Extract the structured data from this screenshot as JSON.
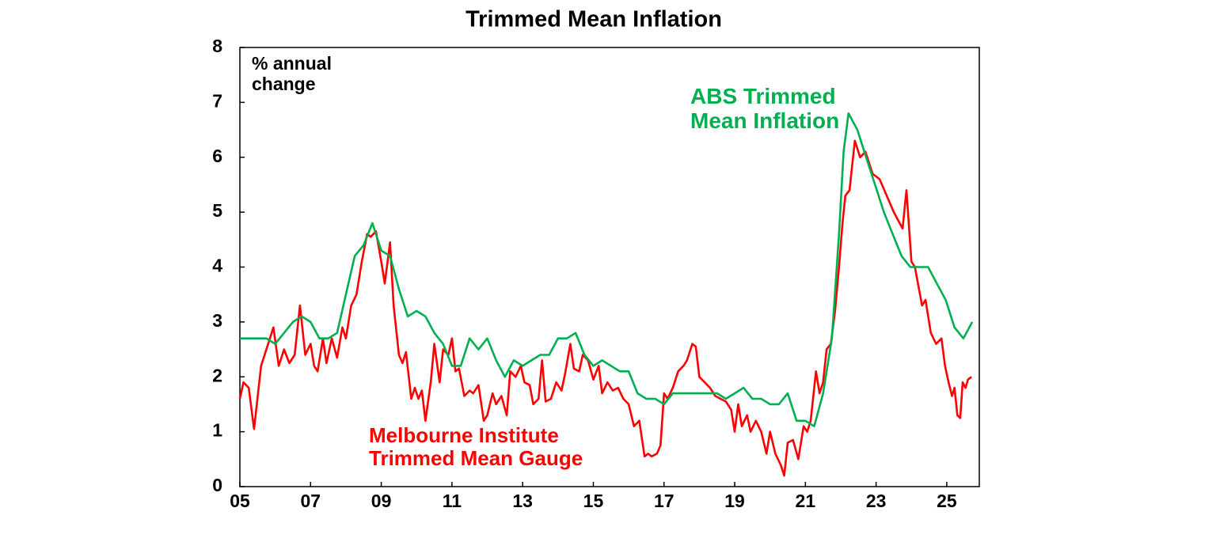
{
  "chart_data": {
    "type": "line",
    "title": "Trimmed Mean Inflation",
    "y_label": "% annual change",
    "xlim": [
      2005,
      2025.92
    ],
    "ylim": [
      0,
      8
    ],
    "xticks": [
      {
        "value": 2005,
        "label": "05"
      },
      {
        "value": 2007,
        "label": "07"
      },
      {
        "value": 2009,
        "label": "09"
      },
      {
        "value": 2011,
        "label": "11"
      },
      {
        "value": 2013,
        "label": "13"
      },
      {
        "value": 2015,
        "label": "15"
      },
      {
        "value": 2017,
        "label": "17"
      },
      {
        "value": 2019,
        "label": "19"
      },
      {
        "value": 2021,
        "label": "21"
      },
      {
        "value": 2023,
        "label": "23"
      },
      {
        "value": 2025,
        "label": "25"
      }
    ],
    "yticks": [
      0,
      1,
      2,
      3,
      4,
      5,
      6,
      7,
      8
    ],
    "series": [
      {
        "name": "Melbourne Institute Trimmed Mean Gauge",
        "color": "#ff0000",
        "x": [
          2005.0,
          2005.1,
          2005.25,
          2005.4,
          2005.6,
          2005.8,
          2005.95,
          2006.1,
          2006.25,
          2006.4,
          2006.55,
          2006.7,
          2006.85,
          2007.0,
          2007.1,
          2007.2,
          2007.35,
          2007.45,
          2007.6,
          2007.75,
          2007.9,
          2008.0,
          2008.15,
          2008.3,
          2008.45,
          2008.6,
          2008.7,
          2008.85,
          2009.0,
          2009.1,
          2009.25,
          2009.35,
          2009.5,
          2009.6,
          2009.7,
          2009.85,
          2009.95,
          2010.05,
          2010.15,
          2010.25,
          2010.4,
          2010.5,
          2010.65,
          2010.75,
          2010.9,
          2011.0,
          2011.1,
          2011.2,
          2011.35,
          2011.5,
          2011.6,
          2011.75,
          2011.9,
          2012.0,
          2012.15,
          2012.25,
          2012.4,
          2012.55,
          2012.65,
          2012.8,
          2012.95,
          2013.05,
          2013.2,
          2013.3,
          2013.45,
          2013.55,
          2013.65,
          2013.8,
          2013.95,
          2014.1,
          2014.2,
          2014.35,
          2014.45,
          2014.6,
          2014.7,
          2014.85,
          2015.0,
          2015.15,
          2015.25,
          2015.4,
          2015.55,
          2015.7,
          2015.85,
          2016.0,
          2016.15,
          2016.3,
          2016.45,
          2016.55,
          2016.65,
          2016.8,
          2016.9,
          2017.0,
          2017.1,
          2017.25,
          2017.4,
          2017.55,
          2017.65,
          2017.8,
          2017.9,
          2018.0,
          2018.15,
          2018.3,
          2018.45,
          2018.6,
          2018.75,
          2018.9,
          2019.0,
          2019.1,
          2019.2,
          2019.35,
          2019.45,
          2019.6,
          2019.75,
          2019.9,
          2020.0,
          2020.15,
          2020.3,
          2020.4,
          2020.5,
          2020.65,
          2020.8,
          2020.95,
          2021.05,
          2021.15,
          2021.3,
          2021.4,
          2021.5,
          2021.6,
          2021.72,
          2021.84,
          2021.95,
          2022.05,
          2022.13,
          2022.25,
          2022.4,
          2022.55,
          2022.7,
          2022.9,
          2023.1,
          2023.5,
          2023.75,
          2023.86,
          2024.0,
          2024.1,
          2024.3,
          2024.4,
          2024.55,
          2024.7,
          2024.85,
          2024.95,
          2025.05,
          2025.15,
          2025.22,
          2025.3,
          2025.38,
          2025.45,
          2025.53,
          2025.6,
          2025.7
        ],
        "values": [
          1.6,
          1.9,
          1.8,
          1.05,
          2.2,
          2.6,
          2.9,
          2.2,
          2.5,
          2.25,
          2.4,
          3.3,
          2.4,
          2.6,
          2.2,
          2.1,
          2.7,
          2.25,
          2.7,
          2.35,
          2.9,
          2.7,
          3.3,
          3.5,
          4.1,
          4.6,
          4.55,
          4.65,
          4.1,
          3.7,
          4.45,
          3.3,
          2.4,
          2.25,
          2.45,
          1.6,
          1.8,
          1.6,
          1.75,
          1.2,
          1.9,
          2.6,
          1.9,
          2.5,
          2.4,
          2.7,
          2.1,
          2.15,
          1.65,
          1.75,
          1.7,
          1.85,
          1.2,
          1.3,
          1.7,
          1.5,
          1.65,
          1.3,
          2.1,
          2.0,
          2.2,
          1.9,
          1.85,
          1.5,
          1.6,
          2.3,
          1.55,
          1.6,
          1.9,
          1.75,
          2.05,
          2.6,
          2.15,
          2.1,
          2.4,
          2.3,
          1.95,
          2.2,
          1.7,
          1.9,
          1.75,
          1.8,
          1.6,
          1.5,
          1.1,
          1.2,
          0.55,
          0.6,
          0.55,
          0.6,
          0.75,
          1.7,
          1.6,
          1.8,
          2.1,
          2.2,
          2.3,
          2.6,
          2.55,
          2.0,
          1.9,
          1.8,
          1.65,
          1.6,
          1.55,
          1.4,
          1.0,
          1.5,
          1.1,
          1.3,
          1.0,
          1.2,
          1.0,
          0.6,
          1.0,
          0.6,
          0.4,
          0.2,
          0.8,
          0.85,
          0.5,
          1.1,
          1.0,
          1.2,
          2.1,
          1.7,
          1.9,
          2.5,
          2.6,
          3.2,
          4.0,
          4.8,
          5.3,
          5.4,
          6.3,
          6.0,
          6.1,
          5.7,
          5.6,
          5.0,
          4.7,
          5.4,
          4.1,
          4.0,
          3.3,
          3.4,
          2.8,
          2.6,
          2.7,
          2.2,
          1.9,
          1.65,
          1.8,
          1.3,
          1.25,
          1.9,
          1.8,
          1.95,
          2.0
        ]
      },
      {
        "name": "ABS Trimmed Mean Inflation",
        "color": "#00b050",
        "x": [
          2005.0,
          2005.25,
          2005.5,
          2005.75,
          2006.0,
          2006.25,
          2006.5,
          2006.75,
          2007.0,
          2007.25,
          2007.5,
          2007.75,
          2008.0,
          2008.25,
          2008.5,
          2008.75,
          2009.0,
          2009.25,
          2009.5,
          2009.75,
          2010.0,
          2010.25,
          2010.5,
          2010.75,
          2011.0,
          2011.25,
          2011.5,
          2011.75,
          2012.0,
          2012.25,
          2012.5,
          2012.75,
          2013.0,
          2013.25,
          2013.5,
          2013.75,
          2014.0,
          2014.25,
          2014.5,
          2014.75,
          2015.0,
          2015.25,
          2015.5,
          2015.75,
          2016.0,
          2016.25,
          2016.5,
          2016.75,
          2017.0,
          2017.25,
          2017.5,
          2017.75,
          2018.0,
          2018.25,
          2018.5,
          2018.75,
          2019.0,
          2019.25,
          2019.5,
          2019.75,
          2020.0,
          2020.25,
          2020.5,
          2020.75,
          2021.0,
          2021.25,
          2021.5,
          2021.75,
          2021.95,
          2022.08,
          2022.22,
          2022.47,
          2022.72,
          2022.97,
          2023.22,
          2023.47,
          2023.72,
          2023.97,
          2024.22,
          2024.47,
          2024.72,
          2024.97,
          2025.22,
          2025.47,
          2025.72
        ],
        "values": [
          2.7,
          2.7,
          2.7,
          2.7,
          2.6,
          2.8,
          3.0,
          3.1,
          3.0,
          2.7,
          2.7,
          2.8,
          3.5,
          4.2,
          4.4,
          4.8,
          4.3,
          4.2,
          3.6,
          3.1,
          3.2,
          3.1,
          2.8,
          2.6,
          2.2,
          2.2,
          2.7,
          2.5,
          2.7,
          2.3,
          2.0,
          2.3,
          2.2,
          2.3,
          2.4,
          2.4,
          2.7,
          2.7,
          2.8,
          2.4,
          2.2,
          2.3,
          2.2,
          2.1,
          2.1,
          1.7,
          1.6,
          1.6,
          1.5,
          1.7,
          1.7,
          1.7,
          1.7,
          1.7,
          1.7,
          1.6,
          1.7,
          1.8,
          1.6,
          1.6,
          1.5,
          1.5,
          1.7,
          1.2,
          1.2,
          1.1,
          1.7,
          2.7,
          4.6,
          6.1,
          6.8,
          6.5,
          6.0,
          5.5,
          5.0,
          4.6,
          4.2,
          4.0,
          4.0,
          4.0,
          3.7,
          3.4,
          2.9,
          2.7,
          3.0
        ]
      }
    ]
  }
}
